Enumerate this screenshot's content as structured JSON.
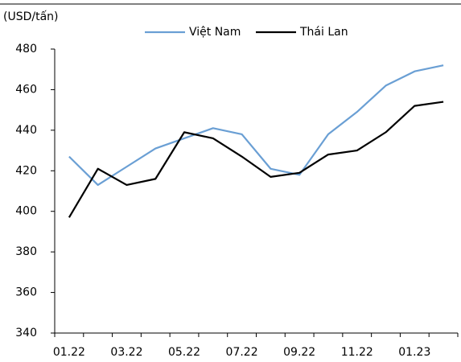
{
  "chart_data": {
    "type": "line",
    "y_label": "(USD/tấn)",
    "categories": [
      "01.22",
      null,
      "03.22",
      null,
      "05.22",
      null,
      "07.22",
      null,
      "09.22",
      null,
      "11.22",
      null,
      "01.23",
      null
    ],
    "series": [
      {
        "name": "Việt Nam",
        "color": "#6a9fd4",
        "values": [
          427,
          413,
          422,
          431,
          436,
          441,
          438,
          421,
          418,
          438,
          449,
          462,
          469,
          472
        ]
      },
      {
        "name": "Thái Lan",
        "color": "#000000",
        "values": [
          397,
          421,
          413,
          416,
          439,
          436,
          427,
          417,
          419,
          428,
          430,
          439,
          452,
          454
        ]
      }
    ],
    "ylim": [
      340,
      480
    ],
    "yticks": [
      340,
      360,
      380,
      400,
      420,
      440,
      460,
      480
    ],
    "grid": false,
    "legend": "top"
  }
}
